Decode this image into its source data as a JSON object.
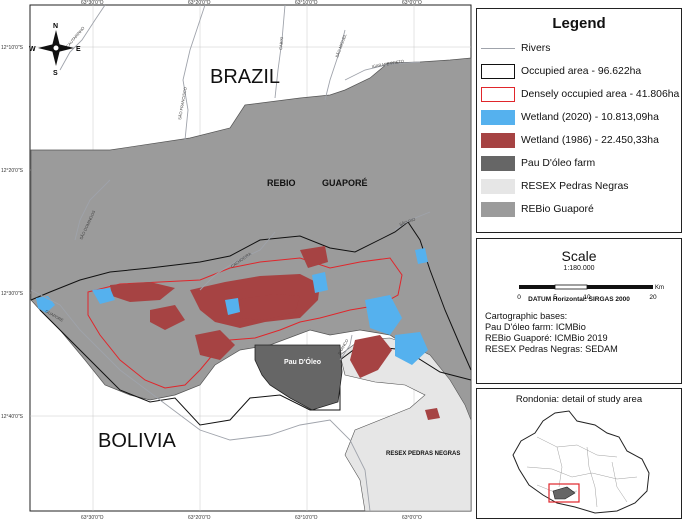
{
  "map": {
    "country_brazil": "BRAZIL",
    "country_bolivia": "BOLIVIA",
    "rebio_label": "REBIO",
    "rebio_label2": "GUAPORÉ",
    "farm_label": "Pau D'Óleo",
    "resex_label": "RESEX PEDRAS NEGRAS",
    "rivers": {
      "r1": "CAUTARINHO",
      "r2": "SÃO FRANCISCO",
      "r3": "CABIXI",
      "r4": "SÃO MIGUEL",
      "r5": "IGARAPE PRETO",
      "r6": "SÃO DOMINGOS",
      "r7": "CACHOEIRA",
      "r8": "BRANCO",
      "r9": "GUAPORÉ",
      "r10": "SÃO RIO"
    },
    "lon_ticks": [
      "63°30'0\"O",
      "63°20'0\"O",
      "63°10'0\"O",
      "63°0'0\"O"
    ],
    "lat_ticks": [
      "12°10'0\"S",
      "12°20'0\"S",
      "12°30'0\"S",
      "12°40'0\"S"
    ],
    "north_arrow": {
      "n": "N",
      "s": "S",
      "e": "E",
      "w": "W"
    }
  },
  "legend": {
    "title": "Legend",
    "items": [
      {
        "label": "Rivers",
        "kind": "line",
        "color": "#9fa3ab"
      },
      {
        "label": "Occupied area  - 96.622ha",
        "kind": "box",
        "color": "#ffffff",
        "border": "#111111"
      },
      {
        "label": "Densely occupied area - 41.806ha",
        "kind": "box",
        "color": "#ffffff",
        "border": "#e0262b"
      },
      {
        "label": "Wetland (2020) - 10.813,09ha",
        "kind": "fill",
        "color": "#55b1ee"
      },
      {
        "label": "Wetland (1986) - 22.450,33ha",
        "kind": "fill",
        "color": "#a64343"
      },
      {
        "label": "Pau D'óleo farm",
        "kind": "fill",
        "color": "#666666"
      },
      {
        "label": "RESEX Pedras Negras",
        "kind": "fill",
        "color": "#e6e6e6"
      },
      {
        "label": "REBio Guaporé",
        "kind": "fill",
        "color": "#9b9b9b"
      }
    ]
  },
  "scale": {
    "title": "Scale",
    "ratio": "1:180.000",
    "unit": "Km",
    "ticks": [
      "0",
      "5",
      "10",
      "20"
    ],
    "datum": "DATUM Horizontal: SIRGAS 2000",
    "bases_title": "Cartographic bases:",
    "bases": [
      "Pau D'óleo farm: ICMBio",
      "REBio Guaporé: ICMBio 2019",
      "RESEX Pedras Negras: SEDAM"
    ]
  },
  "inset": {
    "title": "Rondonia: detail of study area"
  }
}
